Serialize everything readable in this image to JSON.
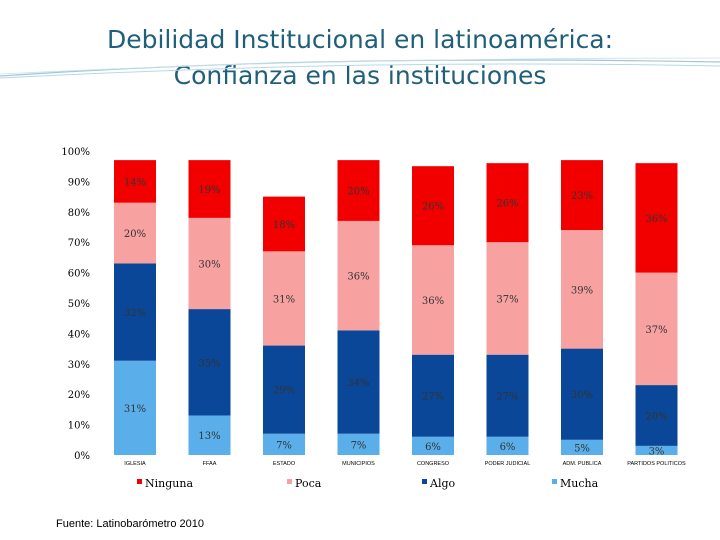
{
  "title": {
    "line1": "Debilidad Institucional en latinoamérica:",
    "line2": "Confianza en las instituciones"
  },
  "source": "Fuente: Latinobarómetro 2010",
  "colors": {
    "ninguna": "#f20000",
    "poca": "#f7a1a1",
    "algo": "#0a4799",
    "mucha": "#5aaee9"
  },
  "chart_data": {
    "type": "bar",
    "stacked": true,
    "percent": true,
    "categories": [
      "IGLESIA",
      "FFAA",
      "ESTADO",
      "MUNICIPIOS",
      "CONGRESO",
      "PODER JUDICIAL",
      "ADM. PUBLICA",
      "PARTIDOS POLITICOS"
    ],
    "series": [
      {
        "name": "Mucha",
        "color": "#5aaee9",
        "values": [
          31,
          13,
          7,
          7,
          6,
          6,
          5,
          3
        ]
      },
      {
        "name": "Algo",
        "color": "#0a4799",
        "values": [
          32,
          35,
          29,
          34,
          27,
          27,
          30,
          20
        ]
      },
      {
        "name": "Poca",
        "color": "#f7a1a1",
        "values": [
          20,
          30,
          31,
          36,
          36,
          37,
          39,
          37
        ]
      },
      {
        "name": "Ninguna",
        "color": "#f20000",
        "values": [
          14,
          19,
          18,
          20,
          26,
          26,
          23,
          36
        ]
      }
    ],
    "y_ticks": [
      "0%",
      "10%",
      "20%",
      "30%",
      "40%",
      "50%",
      "60%",
      "70%",
      "80%",
      "90%",
      "100%"
    ],
    "ylim": [
      0,
      100
    ],
    "legend": [
      "Ninguna",
      "Poca",
      "Algo",
      "Mucha"
    ],
    "legend_position": "bottom"
  }
}
